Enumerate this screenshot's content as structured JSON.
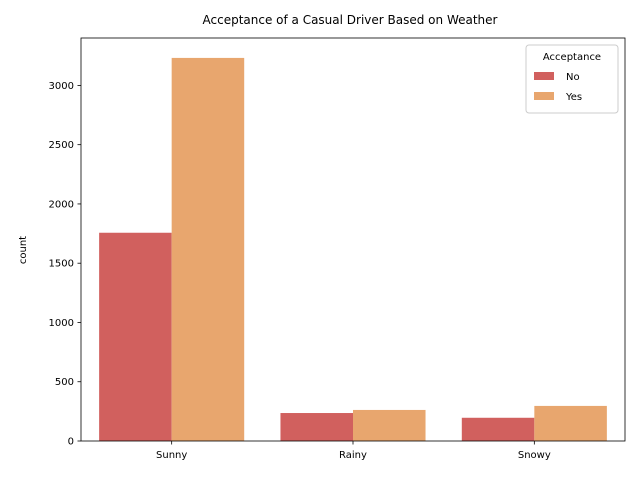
{
  "chart_data": {
    "type": "bar",
    "title": "Acceptance of a Casual Driver Based on Weather",
    "xlabel": "",
    "ylabel": "count",
    "categories": [
      "Sunny",
      "Rainy",
      "Snowy"
    ],
    "series": [
      {
        "name": "No",
        "values": [
          1757,
          236,
          196
        ],
        "color": "#d1605e"
      },
      {
        "name": "Yes",
        "values": [
          3232,
          262,
          296
        ],
        "color": "#e8a66e"
      }
    ],
    "ylim": [
      0,
      3400
    ],
    "yticks": [
      0,
      500,
      1000,
      1500,
      2000,
      2500,
      3000
    ],
    "legend": {
      "title": "Acceptance",
      "position": "top-right"
    },
    "grid": false
  }
}
